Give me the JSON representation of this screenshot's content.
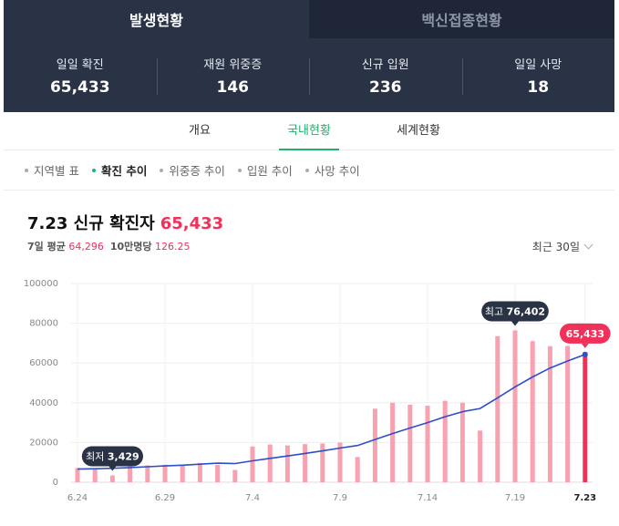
{
  "top_tabs": [
    {
      "label": "발생현황",
      "active": true
    },
    {
      "label": "백신접종현황",
      "active": false
    }
  ],
  "stats": [
    {
      "label": "일일 확진",
      "value": "65,433"
    },
    {
      "label": "재원 위중증",
      "value": "146"
    },
    {
      "label": "신규 입원",
      "value": "236"
    },
    {
      "label": "일일 사망",
      "value": "18"
    }
  ],
  "sub_tabs": [
    {
      "label": "개요",
      "active": false
    },
    {
      "label": "국내현황",
      "active": true
    },
    {
      "label": "세계현황",
      "active": false
    }
  ],
  "chart_menu": [
    {
      "label": "지역별 표",
      "active": false
    },
    {
      "label": "확진 추이",
      "active": true
    },
    {
      "label": "위중증 추이",
      "active": false
    },
    {
      "label": "입원 추이",
      "active": false
    },
    {
      "label": "사망 추이",
      "active": false
    }
  ],
  "chart_header": {
    "title": "7.23 신규 확진자",
    "title_value": "65,433",
    "avg_label": "7일 평균",
    "avg_value": "64,296",
    "per_label": "10만명당",
    "per_value": "126.25",
    "period": "최근 30일"
  },
  "colors": {
    "bar": "#f7a1b1",
    "bar_highlight": "#f0315a",
    "line": "#2d4fc9",
    "tooltip_dark": "#2a3346",
    "accent_green": "#1db36a"
  },
  "chart_data": {
    "type": "bar",
    "x_tick_labels": [
      "6.24",
      "6.29",
      "7.4",
      "7.9",
      "7.14",
      "7.19",
      "7.23"
    ],
    "y_tick_labels": [
      "0",
      "20000",
      "40000",
      "60000",
      "80000",
      "100000"
    ],
    "ylim": [
      0,
      100000
    ],
    "categories": [
      "6.24",
      "6.25",
      "6.26",
      "6.27",
      "6.28",
      "6.29",
      "6.30",
      "7.1",
      "7.2",
      "7.3",
      "7.4",
      "7.5",
      "7.6",
      "7.7",
      "7.8",
      "7.9",
      "7.10",
      "7.11",
      "7.12",
      "7.13",
      "7.14",
      "7.15",
      "7.16",
      "7.17",
      "7.18",
      "7.19",
      "7.20",
      "7.21",
      "7.22",
      "7.23"
    ],
    "series": [
      {
        "type": "bar",
        "values": [
          7200,
          6900,
          3429,
          9000,
          8500,
          8800,
          8900,
          9700,
          8700,
          6200,
          18000,
          19000,
          18500,
          19200,
          19500,
          20000,
          12700,
          37000,
          40000,
          39000,
          38500,
          41000,
          40000,
          26000,
          73500,
          76402,
          71000,
          68500,
          68600,
          65433
        ]
      },
      {
        "type": "line",
        "values": [
          6600,
          6800,
          7000,
          7400,
          7800,
          8200,
          8600,
          9100,
          9600,
          9400,
          10800,
          12000,
          13200,
          14500,
          15800,
          17200,
          18500,
          21500,
          24500,
          27300,
          30000,
          33000,
          35500,
          37100,
          42500,
          48000,
          53000,
          57500,
          61000,
          64296
        ]
      }
    ],
    "annotations": [
      {
        "label": "최저",
        "value": "3,429"
      },
      {
        "label": "최고",
        "value": "76,402"
      },
      {
        "label": "",
        "value": "65,433"
      }
    ],
    "grid": true
  }
}
